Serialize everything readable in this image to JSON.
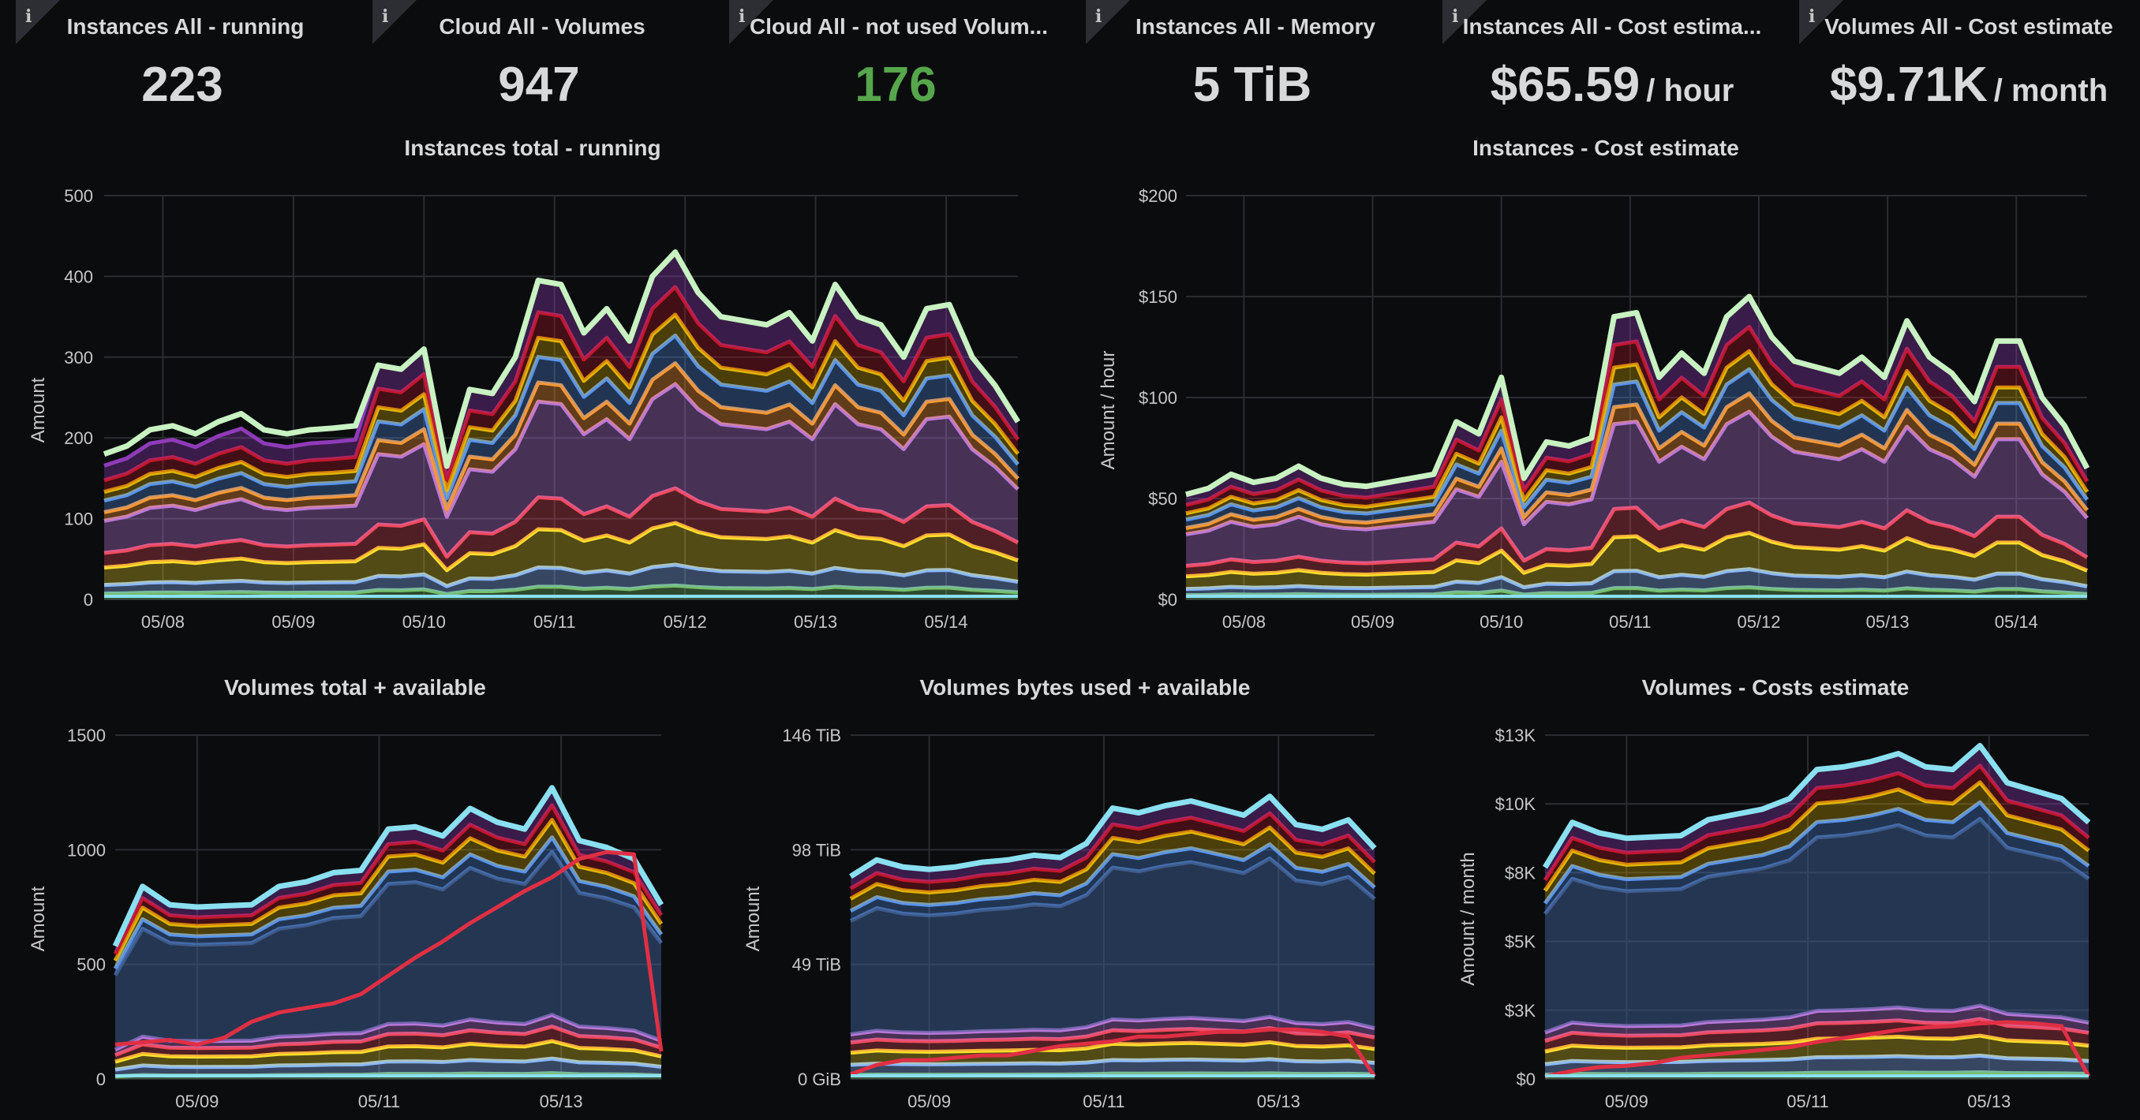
{
  "stats": [
    {
      "title": "Instances All - running",
      "value": "223",
      "unit": "",
      "color": "#d8d9da",
      "info_icon": "info-icon"
    },
    {
      "title": "Cloud All - Volumes",
      "value": "947",
      "unit": "",
      "color": "#d8d9da",
      "info_icon": "info-icon"
    },
    {
      "title": "Cloud All - not used Volum...",
      "value": "176",
      "unit": "",
      "color": "#56a64b",
      "info_icon": "info-icon"
    },
    {
      "title": "Instances All - Memory",
      "value": "5 TiB",
      "unit": "",
      "color": "#d8d9da",
      "info_icon": "info-icon"
    },
    {
      "title": "Instances All - Cost estima...",
      "value": "$65.59",
      "unit": "/ hour",
      "color": "#d8d9da",
      "info_icon": "info-icon"
    },
    {
      "title": "Volumes All - Cost estimate",
      "value": "$9.71K",
      "unit": "/ month",
      "color": "#d8d9da",
      "info_icon": "info-icon"
    }
  ],
  "chart_data": [
    {
      "type": "area",
      "title": "Instances total - running",
      "ylabel": "Amount",
      "yticks": [
        "0",
        "100",
        "200",
        "300",
        "400",
        "500"
      ],
      "ylim": [
        0,
        500
      ],
      "xticks": [
        "05/08",
        "05/09",
        "05/10",
        "05/11",
        "05/12",
        "05/13",
        "05/14"
      ],
      "stacked": true,
      "total": [
        180,
        190,
        210,
        215,
        205,
        220,
        230,
        210,
        205,
        210,
        212,
        215,
        290,
        285,
        310,
        165,
        260,
        255,
        300,
        395,
        390,
        330,
        360,
        320,
        400,
        430,
        380,
        350,
        345,
        340,
        355,
        320,
        390,
        350,
        340,
        300,
        360,
        365,
        300,
        265,
        220
      ]
    },
    {
      "type": "area",
      "title": "Instances - Cost estimate",
      "ylabel": "Amount / hour",
      "yticks": [
        "$0",
        "$50",
        "$100",
        "$150",
        "$200"
      ],
      "ylim": [
        0,
        200
      ],
      "xticks": [
        "05/08",
        "05/09",
        "05/10",
        "05/11",
        "05/12",
        "05/13",
        "05/14"
      ],
      "stacked": true,
      "total": [
        52,
        55,
        62,
        58,
        60,
        66,
        60,
        57,
        56,
        58,
        60,
        62,
        88,
        82,
        110,
        60,
        78,
        76,
        80,
        140,
        142,
        110,
        122,
        112,
        140,
        150,
        130,
        118,
        115,
        112,
        120,
        110,
        138,
        120,
        112,
        98,
        128,
        128,
        100,
        86,
        65
      ]
    },
    {
      "type": "area",
      "title": "Volumes total + available",
      "ylabel": "Amount",
      "yticks": [
        "0",
        "500",
        "1000",
        "1500"
      ],
      "ylim": [
        0,
        1500
      ],
      "xticks": [
        "05/09",
        "05/11",
        "05/13"
      ],
      "stacked": true,
      "total": [
        580,
        840,
        760,
        750,
        755,
        760,
        840,
        860,
        900,
        910,
        1090,
        1100,
        1060,
        1180,
        1120,
        1090,
        1270,
        1040,
        1010,
        960,
        760
      ],
      "highlight_series": [
        150,
        160,
        170,
        150,
        180,
        250,
        290,
        310,
        330,
        370,
        450,
        530,
        600,
        680,
        750,
        820,
        880,
        960,
        990,
        980,
        120
      ]
    },
    {
      "type": "area",
      "title": "Volumes bytes used + available",
      "ylabel": "Amount",
      "yticks": [
        "0 GiB",
        "49 TiB",
        "98 TiB",
        "146 TiB"
      ],
      "ylim": [
        0,
        146
      ],
      "xticks": [
        "05/09",
        "05/11",
        "05/13"
      ],
      "stacked": true,
      "total": [
        86,
        93,
        90,
        89,
        90,
        92,
        93,
        95,
        94,
        100,
        115,
        113,
        116,
        118,
        115,
        112,
        120,
        108,
        106,
        110,
        98
      ],
      "highlight_series": [
        2,
        6,
        8,
        8,
        9,
        10,
        10,
        12,
        14,
        15,
        16,
        18,
        18,
        19,
        20,
        20,
        21,
        21,
        20,
        18,
        1
      ]
    },
    {
      "type": "area",
      "title": "Volumes - Costs estimate",
      "ylabel": "Amount / month",
      "yticks": [
        "$0",
        "$3K",
        "$5K",
        "$8K",
        "$10K",
        "$13K"
      ],
      "ylim": [
        0,
        13000
      ],
      "xticks": [
        "05/09",
        "05/11",
        "05/13"
      ],
      "stacked": true,
      "total": [
        8000,
        9700,
        9300,
        9100,
        9150,
        9200,
        9800,
        10000,
        10200,
        10600,
        11700,
        11800,
        12000,
        12300,
        11800,
        11700,
        12600,
        11200,
        10900,
        10600,
        9700
      ],
      "highlight_series": [
        100,
        300,
        450,
        500,
        600,
        800,
        900,
        1000,
        1100,
        1200,
        1400,
        1550,
        1700,
        1850,
        1950,
        2000,
        2100,
        2150,
        2100,
        2000,
        100
      ]
    }
  ]
}
